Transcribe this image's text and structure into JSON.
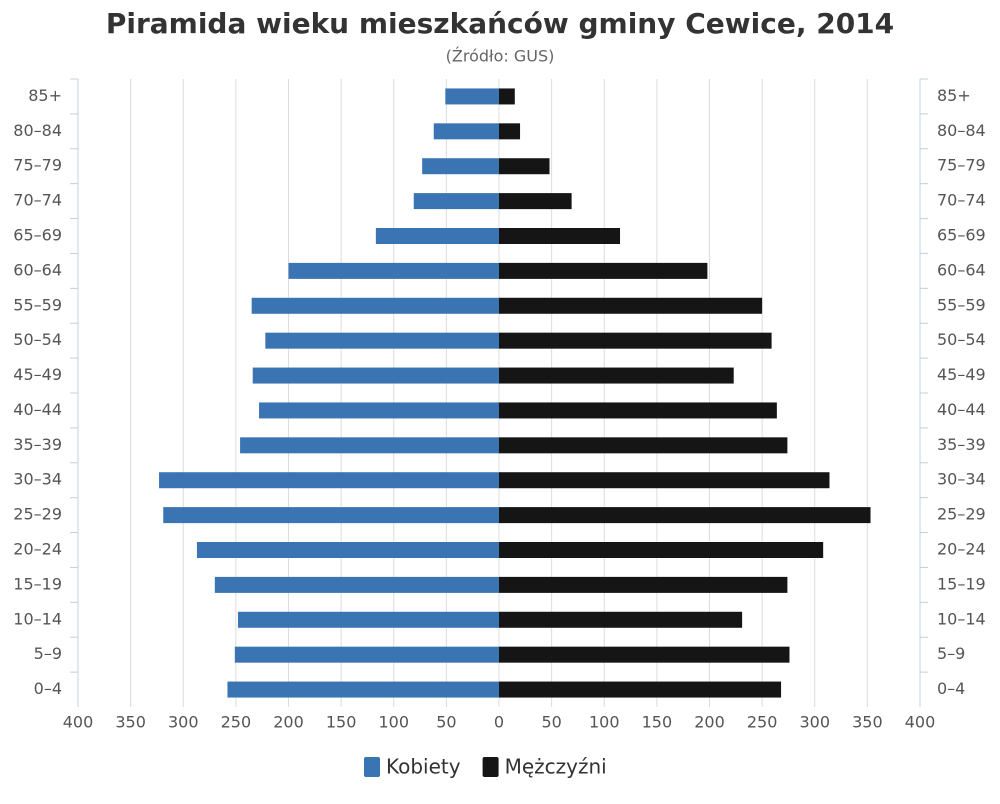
{
  "chart_data": {
    "type": "pyramid",
    "title": "Piramida wieku mieszkańców gminy Cewice, 2014",
    "subtitle": "(Źródło: GUS)",
    "categories": [
      "85+",
      "80–84",
      "75–79",
      "70–74",
      "65–69",
      "60–64",
      "55–59",
      "50–54",
      "45–49",
      "40–44",
      "35–39",
      "30–34",
      "25–29",
      "20–24",
      "15–19",
      "10–14",
      "5–9",
      "0–4"
    ],
    "series": [
      {
        "name": "Kobiety",
        "color": "#3a74b3",
        "values": [
          -51,
          -62,
          -73,
          -81,
          -117,
          -200,
          -235,
          -222,
          -234,
          -228,
          -246,
          -323,
          -319,
          -287,
          -270,
          -248,
          -251,
          -258
        ]
      },
      {
        "name": "Mężczyźni",
        "color": "#151515",
        "values": [
          15,
          20,
          48,
          69,
          115,
          198,
          250,
          259,
          223,
          264,
          274,
          314,
          353,
          308,
          274,
          231,
          276,
          268
        ]
      }
    ],
    "xlim": [
      -400,
      400
    ],
    "xticks": [
      {
        "value": -400,
        "label": "400"
      },
      {
        "value": -350,
        "label": "350"
      },
      {
        "value": -300,
        "label": "300"
      },
      {
        "value": -250,
        "label": "250"
      },
      {
        "value": -200,
        "label": "200"
      },
      {
        "value": -150,
        "label": "150"
      },
      {
        "value": -100,
        "label": "100"
      },
      {
        "value": -50,
        "label": "50"
      },
      0,
      50,
      100,
      150,
      200,
      250,
      300,
      350,
      400
    ],
    "grid": true
  }
}
